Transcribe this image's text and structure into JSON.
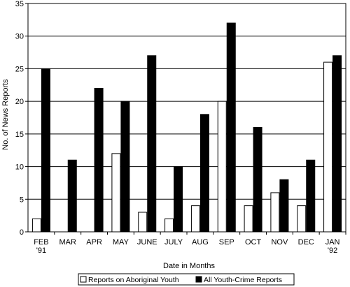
{
  "chart_data": {
    "type": "bar",
    "title": "",
    "xlabel": "Date in Months",
    "ylabel": "No. of News Reports",
    "ylim": [
      0,
      35
    ],
    "yticks": [
      0,
      5,
      10,
      15,
      20,
      25,
      30,
      35
    ],
    "grid": "horizontal",
    "legend_position": "bottom",
    "categories": [
      [
        "FEB",
        "'91"
      ],
      [
        "MAR"
      ],
      [
        "APR"
      ],
      [
        "MAY"
      ],
      [
        "JUNE"
      ],
      [
        "JULY"
      ],
      [
        "AUG"
      ],
      [
        "SEP"
      ],
      [
        "OCT"
      ],
      [
        "NOV"
      ],
      [
        "DEC"
      ],
      [
        "JAN",
        "'92"
      ]
    ],
    "series": [
      {
        "name": "Reports on Aboriginal Youth",
        "color": "#ffffff",
        "values": [
          2,
          0,
          0,
          12,
          3,
          2,
          4,
          20,
          4,
          6,
          4,
          26
        ]
      },
      {
        "name": "All Youth-Crime Reports",
        "color": "#000000",
        "values": [
          25,
          11,
          22,
          20,
          27,
          10,
          18,
          32,
          16,
          8,
          11,
          27
        ]
      }
    ]
  }
}
